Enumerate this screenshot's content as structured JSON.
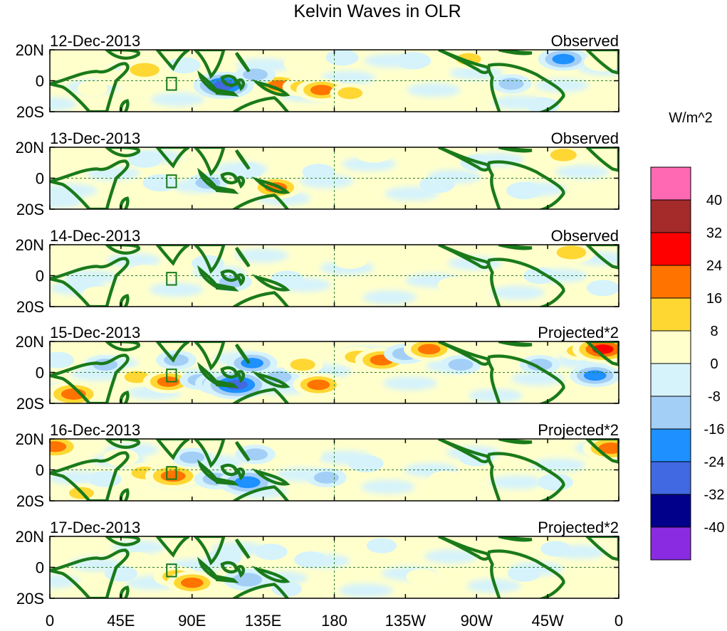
{
  "chart_data": {
    "type": "heatmap",
    "title": "Kelvin Waves in OLR",
    "variable": "Kelvin-filtered OLR anomaly",
    "units_label": "W/m^2",
    "x_tick_labels": [
      "0",
      "45E",
      "90E",
      "135E",
      "180",
      "135W",
      "90W",
      "45W",
      "0"
    ],
    "x_ticks_deg_east": [
      0,
      45,
      90,
      135,
      180,
      225,
      270,
      315,
      360
    ],
    "y_tick_labels": [
      "20N",
      "0",
      "20S"
    ],
    "y_ticks_deg": [
      20,
      0,
      -20
    ],
    "lon_range": [
      0,
      360
    ],
    "lat_range": [
      -20,
      20
    ],
    "colorbar": {
      "levels": [
        -40,
        -32,
        -24,
        -16,
        -8,
        0,
        8,
        16,
        24,
        32,
        40
      ],
      "level_labels": [
        "-40",
        "-32",
        "-24",
        "-16",
        "-8",
        "0",
        "8",
        "16",
        "24",
        "32",
        "40"
      ],
      "colors_low_to_high": [
        "#8a2be2",
        "#00008b",
        "#4169e1",
        "#1e90ff",
        "#a3cff7",
        "#d6f3fb",
        "#ffffcc",
        "#ffd733",
        "#ff7400",
        "#ff0000",
        "#a52a2a",
        "#ff69b4"
      ]
    },
    "box_marker": {
      "lon": [
        74,
        80
      ],
      "lat": [
        -6,
        2
      ]
    },
    "panels": [
      {
        "date": "12-Dec-2013",
        "label": "Observed",
        "anomalies": [
          {
            "lon": 40,
            "lat": 2,
            "value": 10
          },
          {
            "lon": 60,
            "lat": 7,
            "value": 22
          },
          {
            "lon": 27,
            "lat": -5,
            "value": 8
          },
          {
            "lon": 96,
            "lat": -2,
            "value": 10
          },
          {
            "lon": 110,
            "lat": -3,
            "value": -32
          },
          {
            "lon": 85,
            "lat": 10,
            "value": -10
          },
          {
            "lon": 145,
            "lat": -3,
            "value": 24
          },
          {
            "lon": 160,
            "lat": -4,
            "value": 16
          },
          {
            "lon": 172,
            "lat": -6,
            "value": 24
          },
          {
            "lon": 190,
            "lat": -8,
            "value": 16
          },
          {
            "lon": 160,
            "lat": 11,
            "value": 14
          },
          {
            "lon": 130,
            "lat": 4,
            "value": -16
          },
          {
            "lon": 185,
            "lat": 15,
            "value": -10
          },
          {
            "lon": 230,
            "lat": 13,
            "value": -12
          },
          {
            "lon": 265,
            "lat": 14,
            "value": 16
          },
          {
            "lon": 292,
            "lat": -2,
            "value": -16
          },
          {
            "lon": 325,
            "lat": 14,
            "value": -24
          },
          {
            "lon": 350,
            "lat": 12,
            "value": 14
          },
          {
            "lon": 355,
            "lat": -8,
            "value": 8
          },
          {
            "lon": 312,
            "lat": -16,
            "value": -10
          }
        ]
      },
      {
        "date": "13-Dec-2013",
        "label": "Observed",
        "anomalies": [
          {
            "lon": 30,
            "lat": 10,
            "value": 8
          },
          {
            "lon": 70,
            "lat": -3,
            "value": -12
          },
          {
            "lon": 100,
            "lat": -3,
            "value": -16
          },
          {
            "lon": 143,
            "lat": -6,
            "value": 24
          },
          {
            "lon": 125,
            "lat": 5,
            "value": -10
          },
          {
            "lon": 205,
            "lat": 16,
            "value": 14
          },
          {
            "lon": 195,
            "lat": -10,
            "value": 8
          },
          {
            "lon": 245,
            "lat": -4,
            "value": -12
          },
          {
            "lon": 270,
            "lat": 10,
            "value": -10
          },
          {
            "lon": 325,
            "lat": 15,
            "value": 18
          },
          {
            "lon": 300,
            "lat": -8,
            "value": -12
          },
          {
            "lon": 60,
            "lat": 12,
            "value": -10
          },
          {
            "lon": 170,
            "lat": 4,
            "value": -10
          }
        ]
      },
      {
        "date": "14-Dec-2013",
        "label": "Observed",
        "anomalies": [
          {
            "lon": 60,
            "lat": 2,
            "value": 8
          },
          {
            "lon": 100,
            "lat": 8,
            "value": -10
          },
          {
            "lon": 115,
            "lat": -4,
            "value": -16
          },
          {
            "lon": 150,
            "lat": -2,
            "value": -10
          },
          {
            "lon": 190,
            "lat": 10,
            "value": 12
          },
          {
            "lon": 225,
            "lat": 12,
            "value": 14
          },
          {
            "lon": 255,
            "lat": -6,
            "value": 8
          },
          {
            "lon": 330,
            "lat": 15,
            "value": 22
          },
          {
            "lon": 310,
            "lat": 0,
            "value": -10
          },
          {
            "lon": 30,
            "lat": -12,
            "value": 8
          },
          {
            "lon": 350,
            "lat": -8,
            "value": -10
          }
        ]
      },
      {
        "date": "15-Dec-2013",
        "label": "Projected*2",
        "anomalies": [
          {
            "lon": 15,
            "lat": -14,
            "value": 28
          },
          {
            "lon": 35,
            "lat": 5,
            "value": -16
          },
          {
            "lon": 55,
            "lat": -3,
            "value": 16
          },
          {
            "lon": 75,
            "lat": -6,
            "value": 24
          },
          {
            "lon": 80,
            "lat": 8,
            "value": -16
          },
          {
            "lon": 95,
            "lat": -5,
            "value": -16
          },
          {
            "lon": 108,
            "lat": -7,
            "value": -24
          },
          {
            "lon": 118,
            "lat": -8,
            "value": -36
          },
          {
            "lon": 128,
            "lat": 6,
            "value": -24
          },
          {
            "lon": 145,
            "lat": -3,
            "value": -16
          },
          {
            "lon": 160,
            "lat": 5,
            "value": 16
          },
          {
            "lon": 170,
            "lat": -8,
            "value": 24
          },
          {
            "lon": 195,
            "lat": 10,
            "value": 18
          },
          {
            "lon": 210,
            "lat": 8,
            "value": 26
          },
          {
            "lon": 225,
            "lat": 12,
            "value": -18
          },
          {
            "lon": 240,
            "lat": 15,
            "value": 24
          },
          {
            "lon": 260,
            "lat": 5,
            "value": -16
          },
          {
            "lon": 280,
            "lat": -5,
            "value": 8
          },
          {
            "lon": 310,
            "lat": 5,
            "value": -16
          },
          {
            "lon": 335,
            "lat": 14,
            "value": 16
          },
          {
            "lon": 350,
            "lat": 15,
            "value": 32
          },
          {
            "lon": 345,
            "lat": -2,
            "value": -24
          },
          {
            "lon": 5,
            "lat": 8,
            "value": -10
          }
        ]
      },
      {
        "date": "16-Dec-2013",
        "label": "Projected*2",
        "anomalies": [
          {
            "lon": 3,
            "lat": 15,
            "value": 26
          },
          {
            "lon": 20,
            "lat": -15,
            "value": 16
          },
          {
            "lon": 45,
            "lat": 8,
            "value": 12
          },
          {
            "lon": 60,
            "lat": -2,
            "value": 18
          },
          {
            "lon": 78,
            "lat": -4,
            "value": 28
          },
          {
            "lon": 90,
            "lat": 8,
            "value": -16
          },
          {
            "lon": 105,
            "lat": -6,
            "value": -18
          },
          {
            "lon": 125,
            "lat": -8,
            "value": -30
          },
          {
            "lon": 130,
            "lat": 10,
            "value": -16
          },
          {
            "lon": 160,
            "lat": 10,
            "value": 14
          },
          {
            "lon": 175,
            "lat": -5,
            "value": -16
          },
          {
            "lon": 200,
            "lat": 4,
            "value": -12
          },
          {
            "lon": 230,
            "lat": 12,
            "value": 14
          },
          {
            "lon": 250,
            "lat": -6,
            "value": 10
          },
          {
            "lon": 270,
            "lat": 8,
            "value": -12
          },
          {
            "lon": 300,
            "lat": 10,
            "value": 8
          },
          {
            "lon": 320,
            "lat": -8,
            "value": -12
          },
          {
            "lon": 355,
            "lat": 14,
            "value": 28
          },
          {
            "lon": 35,
            "lat": -6,
            "value": -10
          }
        ]
      },
      {
        "date": "17-Dec-2013",
        "label": "Projected*2",
        "anomalies": [
          {
            "lon": 10,
            "lat": 16,
            "value": 14
          },
          {
            "lon": 25,
            "lat": -14,
            "value": 10
          },
          {
            "lon": 55,
            "lat": 5,
            "value": 8
          },
          {
            "lon": 80,
            "lat": -6,
            "value": 20
          },
          {
            "lon": 90,
            "lat": -10,
            "value": 24
          },
          {
            "lon": 110,
            "lat": 6,
            "value": -12
          },
          {
            "lon": 125,
            "lat": -8,
            "value": -22
          },
          {
            "lon": 140,
            "lat": 10,
            "value": -10
          },
          {
            "lon": 150,
            "lat": -14,
            "value": -8
          },
          {
            "lon": 165,
            "lat": 5,
            "value": -10
          },
          {
            "lon": 210,
            "lat": 14,
            "value": -8
          },
          {
            "lon": 235,
            "lat": -6,
            "value": 8
          },
          {
            "lon": 275,
            "lat": 14,
            "value": 14
          },
          {
            "lon": 300,
            "lat": -4,
            "value": -10
          },
          {
            "lon": 320,
            "lat": 12,
            "value": -8
          },
          {
            "lon": 350,
            "lat": -10,
            "value": 8
          },
          {
            "lon": 45,
            "lat": -4,
            "value": -10
          }
        ]
      }
    ]
  }
}
